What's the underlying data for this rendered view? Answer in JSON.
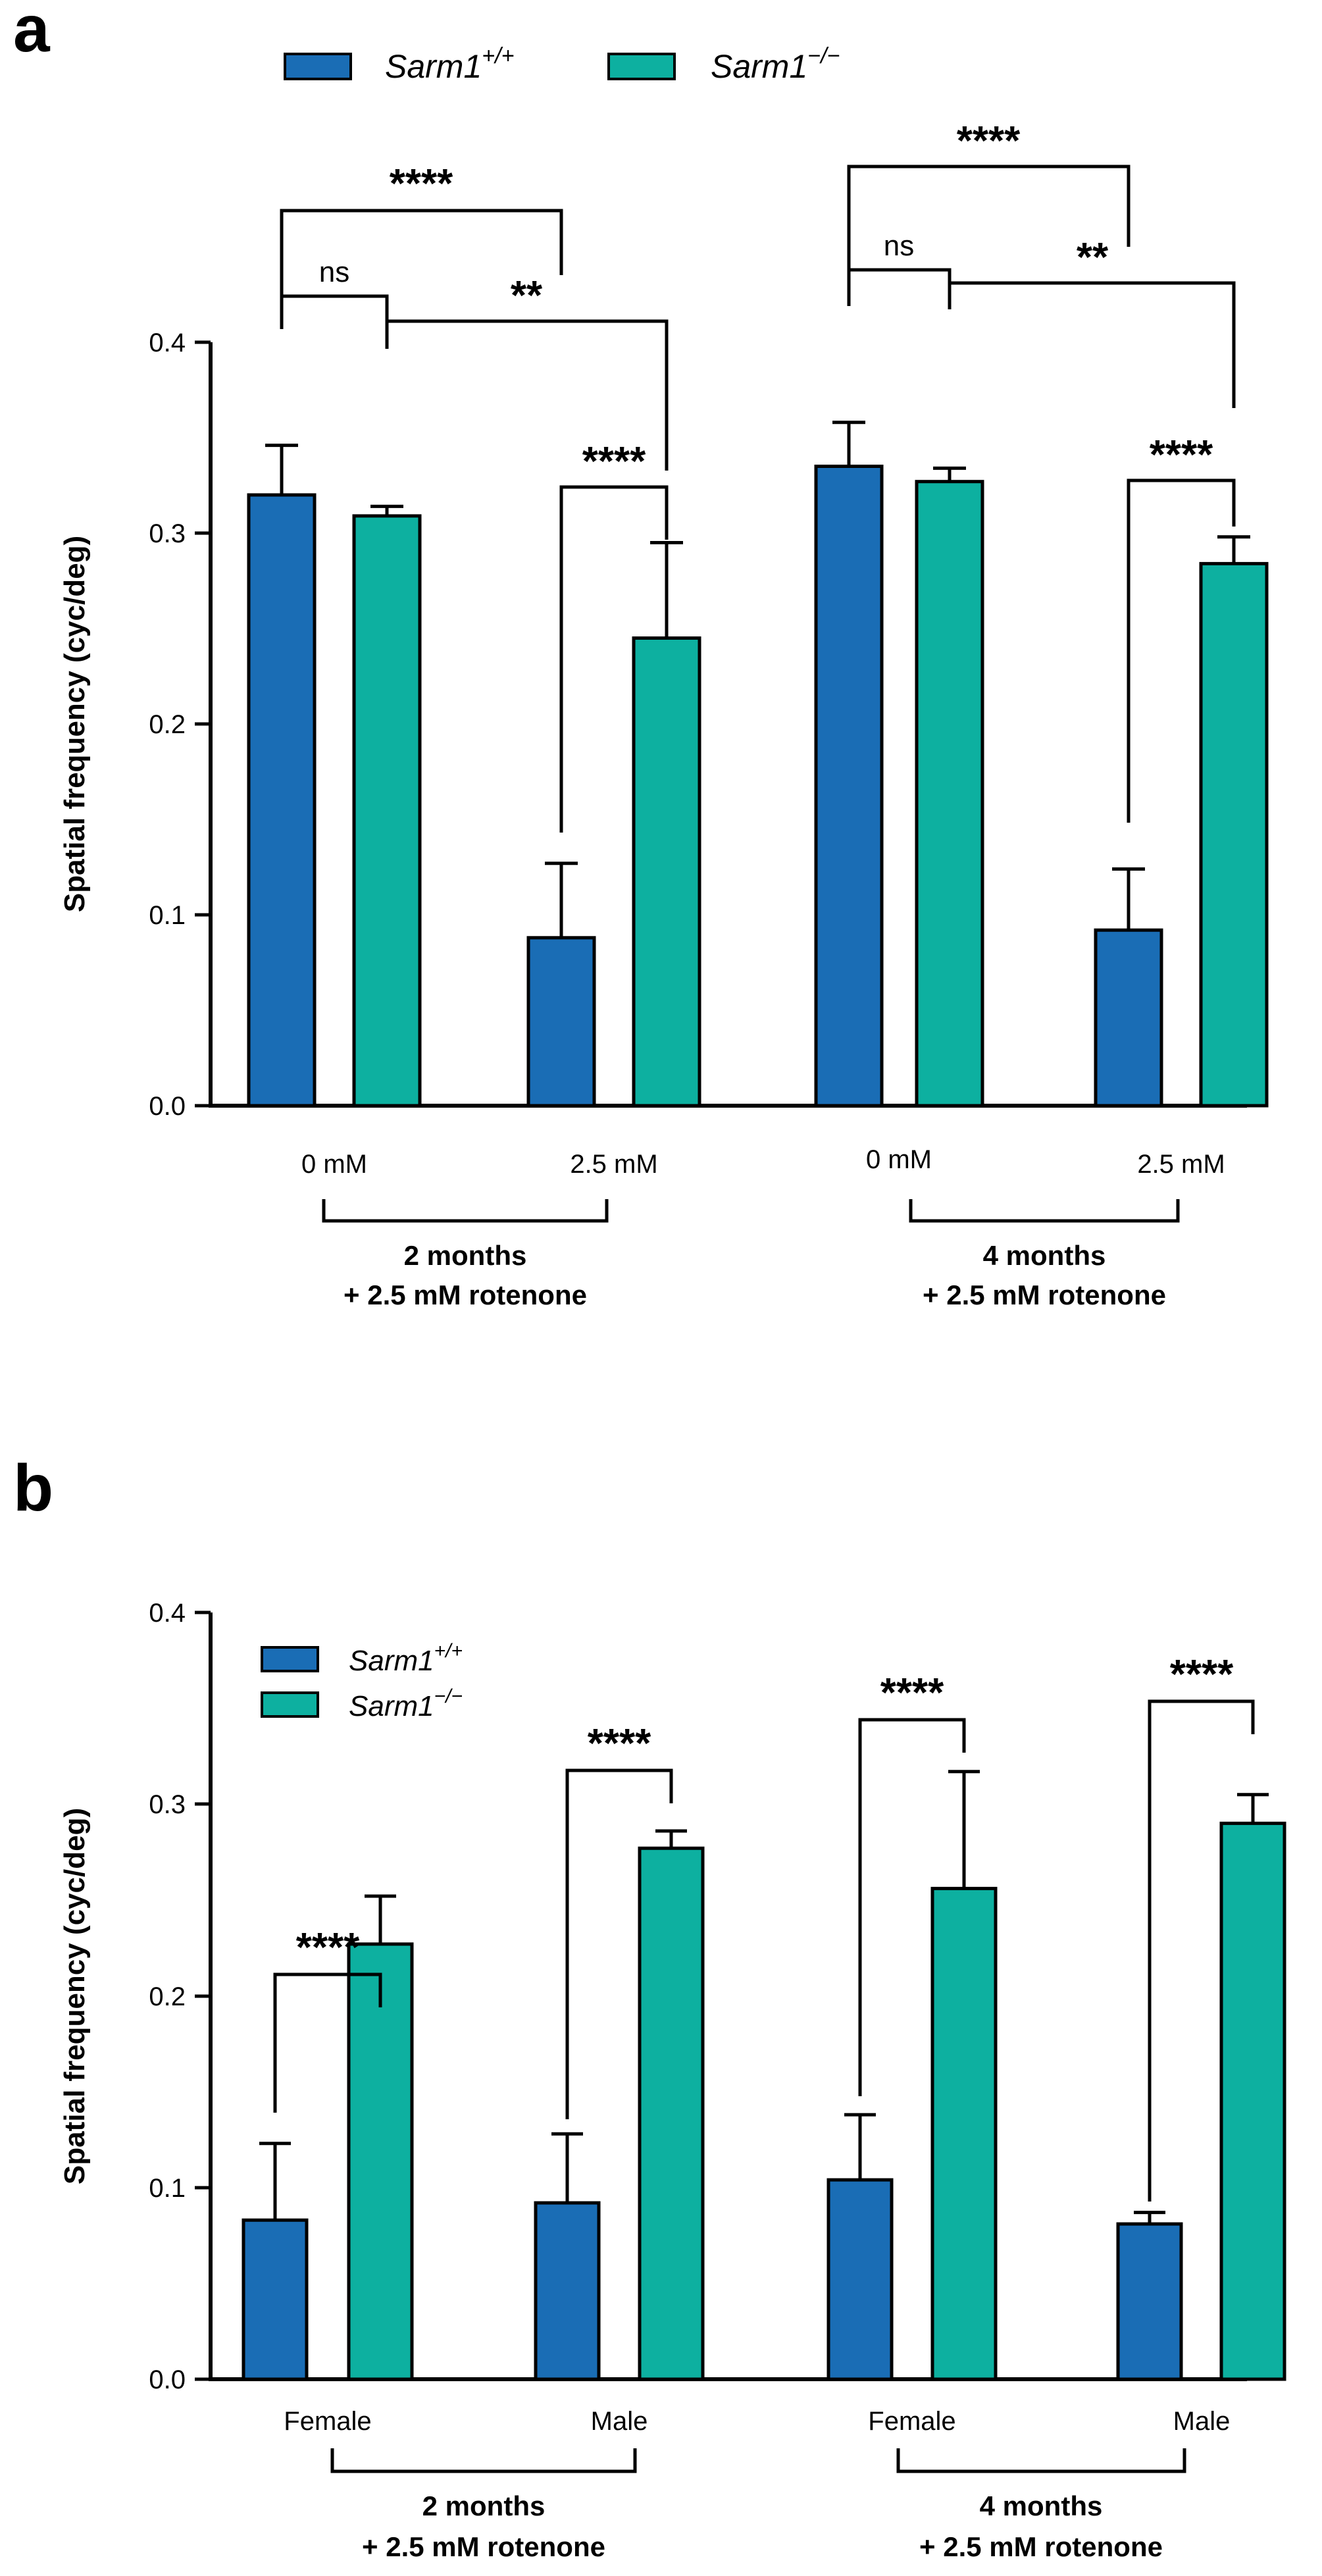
{
  "colors": {
    "wt": "#1a6db5",
    "ko": "#0db0a0",
    "axis": "#000000"
  },
  "chart_data": [
    {
      "panel": "a",
      "type": "bar",
      "ylabel": "Spatial frequency (cyc/deg)",
      "ylim": [
        0,
        0.4
      ],
      "yticks": [
        "0.0",
        "0.1",
        "0.2",
        "0.3",
        "0.4"
      ],
      "legend": [
        {
          "name": "Sarm1",
          "sup": "+/+"
        },
        {
          "name": "Sarm1",
          "sup": "−/−"
        }
      ],
      "categories": [
        "0 mM",
        "2.5 mM",
        "0 mM",
        "2.5 mM"
      ],
      "groups": [
        {
          "line1": "2 months",
          "line2": "+ 2.5 mM rotenone"
        },
        {
          "line1": "4 months",
          "line2": "+ 2.5 mM rotenone"
        }
      ],
      "series": [
        {
          "name": "Sarm1+/+",
          "values": [
            0.32,
            0.088,
            0.335,
            0.092
          ],
          "errors": [
            0.026,
            0.039,
            0.023,
            0.032
          ]
        },
        {
          "name": "Sarm1−/−",
          "values": [
            0.309,
            0.245,
            0.327,
            0.284
          ],
          "errors": [
            0.005,
            0.05,
            0.007,
            0.014
          ]
        }
      ],
      "annotations": [
        "ns",
        "**",
        "****",
        "****",
        "ns",
        "**",
        "****",
        "****"
      ]
    },
    {
      "panel": "b",
      "type": "bar",
      "ylabel": "Spatial frequency (cyc/deg)",
      "ylim": [
        0,
        0.4
      ],
      "yticks": [
        "0.0",
        "0.1",
        "0.2",
        "0.3",
        "0.4"
      ],
      "legend": [
        {
          "name": "Sarm1",
          "sup": "+/+"
        },
        {
          "name": "Sarm1",
          "sup": "−/−"
        }
      ],
      "categories": [
        "Female",
        "Male",
        "Female",
        "Male"
      ],
      "groups": [
        {
          "line1": "2 months",
          "line2": "+ 2.5 mM rotenone"
        },
        {
          "line1": "4 months",
          "line2": "+ 2.5 mM rotenone"
        }
      ],
      "series": [
        {
          "name": "Sarm1+/+",
          "values": [
            0.083,
            0.092,
            0.104,
            0.081
          ],
          "errors": [
            0.04,
            0.036,
            0.034,
            0.006
          ]
        },
        {
          "name": "Sarm1−/−",
          "values": [
            0.227,
            0.277,
            0.256,
            0.29
          ],
          "errors": [
            0.025,
            0.009,
            0.061,
            0.015
          ]
        }
      ],
      "annotations": [
        "****",
        "****",
        "****",
        "****"
      ]
    }
  ]
}
